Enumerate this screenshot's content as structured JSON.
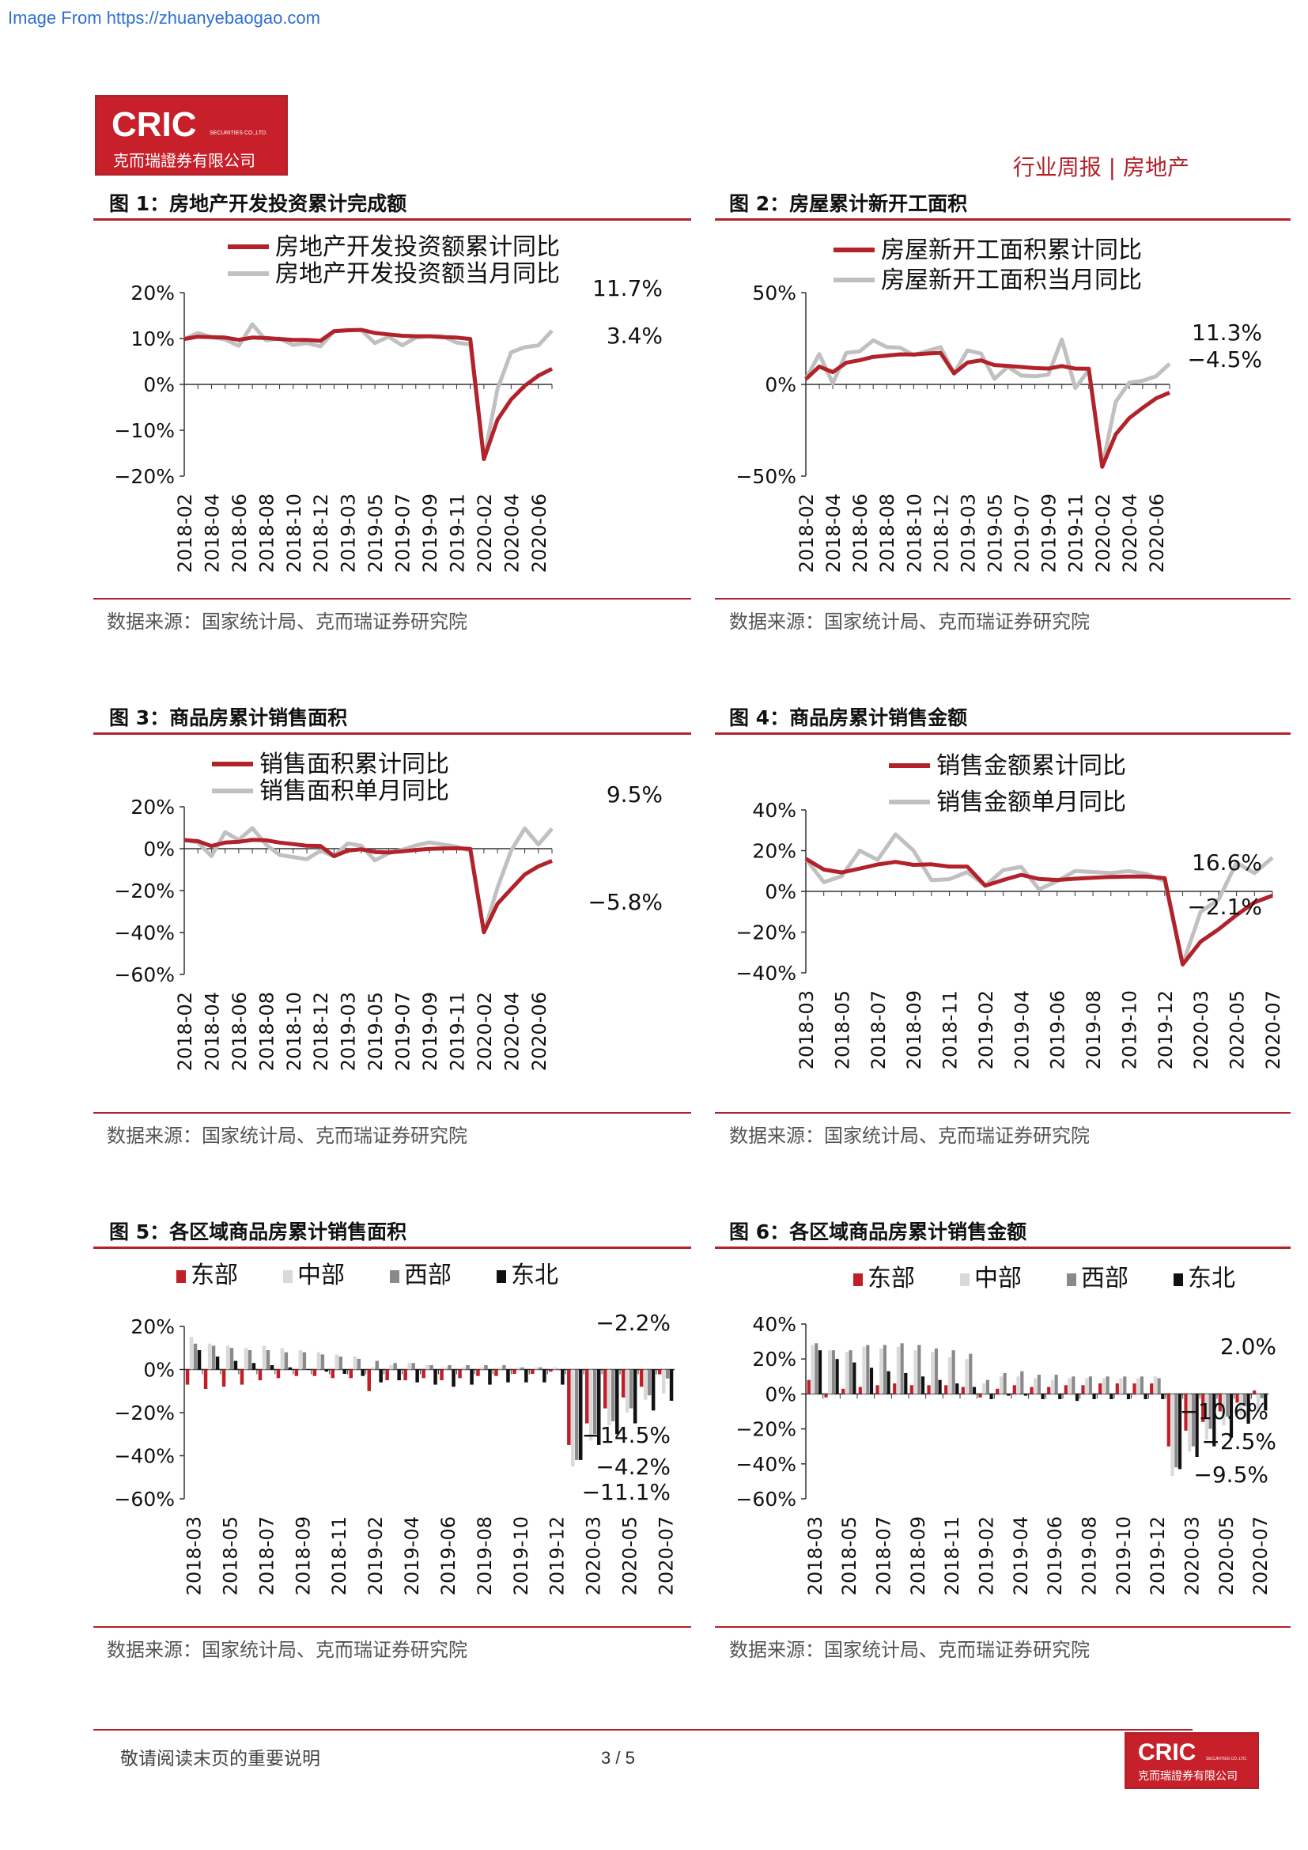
{
  "watermark": "Image From https://zhuanyebaogao.com",
  "logo": {
    "brand": "CRIC",
    "sub": "SECURITIES CO.,LTD.",
    "cn": "克而瑞證券有限公司"
  },
  "header": {
    "tag": "行业周报 | 房地产"
  },
  "colors": {
    "accent": "#b2222a",
    "series_dark": "#b2222a",
    "series_light": "#c0c0c0",
    "bar_east": "#c01f27",
    "bar_central": "#d9d9d9",
    "bar_west": "#8a8a8a",
    "bar_ne": "#111111"
  },
  "figures": [
    {
      "title": "图 1：房地产开发投资累计完成额",
      "source": "数据来源：国家统计局、克而瑞证券研究院"
    },
    {
      "title": "图 2：房屋累计新开工面积",
      "source": "数据来源：国家统计局、克而瑞证券研究院"
    },
    {
      "title": "图 3：商品房累计销售面积",
      "source": "数据来源：国家统计局、克而瑞证券研究院"
    },
    {
      "title": "图 4：商品房累计销售金额",
      "source": "数据来源：国家统计局、克而瑞证券研究院"
    },
    {
      "title": "图 5：各区域商品房累计销售面积",
      "source": "数据来源：国家统计局、克而瑞证券研究院"
    },
    {
      "title": "图 6：各区域商品房累计销售金额",
      "source": "数据来源：国家统计局、克而瑞证券研究院"
    }
  ],
  "footer": {
    "note": "敬请阅读末页的重要说明",
    "page": "3 / 5"
  },
  "chart_data": [
    {
      "type": "line",
      "x": [
        "2018-02",
        "2018-03",
        "2018-04",
        "2018-05",
        "2018-06",
        "2018-07",
        "2018-08",
        "2018-09",
        "2018-10",
        "2018-11",
        "2018-12",
        "2019-02",
        "2019-03",
        "2019-04",
        "2019-05",
        "2019-06",
        "2019-07",
        "2019-08",
        "2019-09",
        "2019-10",
        "2019-11",
        "2019-12",
        "2020-02",
        "2020-03",
        "2020-04",
        "2020-05",
        "2020-06",
        "2020-07"
      ],
      "xticks": [
        "2018-02",
        "2018-04",
        "2018-06",
        "2018-08",
        "2018-10",
        "2018-12",
        "2019-03",
        "2019-05",
        "2019-07",
        "2019-09",
        "2019-11",
        "2020-02",
        "2020-04",
        "2020-06"
      ],
      "ylim": [
        -20,
        20
      ],
      "yticks": [
        "20%",
        "10%",
        "0%",
        "−10%",
        "−20%"
      ],
      "ytick_values": [
        20,
        10,
        0,
        -10,
        -20
      ],
      "series": [
        {
          "name": "房地产开发投资额累计同比",
          "values": [
            9.9,
            10.4,
            10.3,
            10.2,
            9.7,
            10.2,
            10.1,
            9.9,
            9.7,
            9.7,
            9.5,
            11.6,
            11.8,
            11.9,
            11.2,
            10.9,
            10.6,
            10.5,
            10.5,
            10.3,
            10.2,
            9.9,
            -16.3,
            -7.7,
            -3.3,
            -0.3,
            1.9,
            3.4
          ]
        },
        {
          "name": "房地产开发投资额当月同比",
          "values": [
            9.9,
            11.2,
            10.3,
            9.8,
            8.4,
            13.1,
            9.6,
            10.0,
            8.6,
            9.0,
            8.3,
            11.6,
            11.9,
            11.8,
            9.0,
            10.4,
            8.5,
            10.2,
            10.5,
            10.5,
            9.1,
            8.7,
            -16.3,
            -1.0,
            7.0,
            8.1,
            8.5,
            11.7
          ]
        }
      ],
      "annotations": [
        "11.7%",
        "3.4%"
      ]
    },
    {
      "type": "line",
      "x": [
        "2018-02",
        "2018-03",
        "2018-04",
        "2018-05",
        "2018-06",
        "2018-07",
        "2018-08",
        "2018-09",
        "2018-10",
        "2018-11",
        "2018-12",
        "2019-02",
        "2019-03",
        "2019-04",
        "2019-05",
        "2019-06",
        "2019-07",
        "2019-08",
        "2019-09",
        "2019-10",
        "2019-11",
        "2019-12",
        "2020-02",
        "2020-03",
        "2020-04",
        "2020-05",
        "2020-06",
        "2020-07"
      ],
      "xticks": [
        "2018-02",
        "2018-04",
        "2018-06",
        "2018-08",
        "2018-10",
        "2018-12",
        "2019-03",
        "2019-05",
        "2019-07",
        "2019-09",
        "2019-11",
        "2020-02",
        "2020-04",
        "2020-06"
      ],
      "ylim": [
        -50,
        50
      ],
      "yticks": [
        "50%",
        "0%",
        "−50%"
      ],
      "ytick_values": [
        50,
        0,
        -50
      ],
      "series": [
        {
          "name": "房屋新开工面积累计同比",
          "values": [
            2.9,
            9.7,
            6.7,
            11.8,
            13.2,
            15.0,
            15.7,
            16.4,
            16.3,
            16.8,
            17.2,
            6.0,
            11.9,
            13.1,
            10.5,
            10.1,
            9.5,
            8.9,
            8.6,
            10.0,
            8.6,
            8.5,
            -44.9,
            -27.2,
            -18.4,
            -12.8,
            -7.6,
            -4.5
          ]
        },
        {
          "name": "房屋新开工面积当月同比",
          "values": [
            2.9,
            16.5,
            0.6,
            17.2,
            18.0,
            24.0,
            20.4,
            20.0,
            16.0,
            18.2,
            20.3,
            6.0,
            18.5,
            16.8,
            3.0,
            9.6,
            4.8,
            4.4,
            5.3,
            24.5,
            -2.0,
            7.8,
            -44.9,
            -9.5,
            1.0,
            2.0,
            4.5,
            11.3
          ]
        }
      ],
      "annotations": [
        "11.3%",
        "−4.5%"
      ]
    },
    {
      "type": "line",
      "x": [
        "2018-02",
        "2018-03",
        "2018-04",
        "2018-05",
        "2018-06",
        "2018-07",
        "2018-08",
        "2018-09",
        "2018-10",
        "2018-11",
        "2018-12",
        "2019-02",
        "2019-03",
        "2019-04",
        "2019-05",
        "2019-06",
        "2019-07",
        "2019-08",
        "2019-09",
        "2019-10",
        "2019-11",
        "2019-12",
        "2020-02",
        "2020-03",
        "2020-04",
        "2020-05",
        "2020-06",
        "2020-07"
      ],
      "xticks": [
        "2018-02",
        "2018-04",
        "2018-06",
        "2018-08",
        "2018-10",
        "2018-12",
        "2019-03",
        "2019-05",
        "2019-07",
        "2019-09",
        "2019-11",
        "2020-02",
        "2020-04",
        "2020-06"
      ],
      "ylim": [
        -60,
        20
      ],
      "yticks": [
        "20%",
        "0%",
        "−20%",
        "−40%",
        "−60%"
      ],
      "ytick_values": [
        20,
        0,
        -20,
        -40,
        -60
      ],
      "series": [
        {
          "name": "销售面积累计同比",
          "values": [
            4.1,
            3.6,
            1.3,
            2.9,
            3.3,
            4.2,
            4.0,
            2.9,
            2.2,
            1.4,
            1.3,
            -3.6,
            -0.9,
            -0.3,
            -1.6,
            -1.8,
            -1.3,
            -0.6,
            -0.1,
            0.1,
            0.2,
            -0.1,
            -39.9,
            -26.3,
            -19.3,
            -12.3,
            -8.4,
            -5.8
          ]
        },
        {
          "name": "销售面积单月同比",
          "values": [
            4.1,
            3.0,
            -3.5,
            7.9,
            4.2,
            9.8,
            2.0,
            -3.0,
            -4.0,
            -5.0,
            -1.0,
            -3.6,
            2.5,
            1.4,
            -5.6,
            -2.2,
            -0.5,
            1.5,
            3.0,
            2.0,
            1.0,
            -1.0,
            -39.9,
            -18.6,
            -1.0,
            9.7,
            2.0,
            9.5
          ]
        }
      ],
      "annotations": [
        "9.5%",
        "−5.8%"
      ]
    },
    {
      "type": "line",
      "x": [
        "2018-03",
        "2018-04",
        "2018-05",
        "2018-06",
        "2018-07",
        "2018-08",
        "2018-09",
        "2018-10",
        "2018-11",
        "2018-12",
        "2019-02",
        "2019-03",
        "2019-04",
        "2019-05",
        "2019-06",
        "2019-07",
        "2019-08",
        "2019-09",
        "2019-10",
        "2019-11",
        "2019-12",
        "2020-02",
        "2020-03",
        "2020-04",
        "2020-05",
        "2020-06",
        "2020-07"
      ],
      "xticks": [
        "2018-03",
        "2018-05",
        "2018-07",
        "2018-09",
        "2018-11",
        "2019-02",
        "2019-04",
        "2019-06",
        "2019-08",
        "2019-10",
        "2019-12",
        "2020-03",
        "2020-05",
        "2020-07"
      ],
      "ylim": [
        -40,
        40
      ],
      "yticks": [
        "40%",
        "20%",
        "0%",
        "−20%",
        "−40%"
      ],
      "ytick_values": [
        40,
        20,
        0,
        -20,
        -40
      ],
      "series": [
        {
          "name": "销售金额累计同比",
          "values": [
            16.0,
            10.7,
            9.3,
            11.2,
            13.2,
            14.5,
            13.0,
            13.3,
            12.2,
            12.2,
            2.8,
            5.6,
            8.1,
            6.1,
            5.6,
            6.2,
            6.7,
            7.1,
            7.3,
            7.3,
            6.5,
            -35.9,
            -24.7,
            -18.6,
            -11.6,
            -5.4,
            -2.1
          ]
        },
        {
          "name": "销售金额单月同比",
          "values": [
            16.0,
            4.5,
            7.5,
            20.0,
            15.5,
            28.0,
            20.0,
            5.5,
            6.0,
            9.5,
            2.8,
            10.5,
            12.0,
            1.0,
            5.0,
            10.0,
            9.5,
            9.0,
            10.0,
            8.5,
            5.0,
            -35.9,
            -10.0,
            -4.0,
            14.0,
            9.0,
            16.6
          ]
        }
      ],
      "annotations": [
        "16.6%",
        "−2.1%"
      ]
    },
    {
      "type": "bar",
      "x": [
        "2018-03",
        "2018-04",
        "2018-05",
        "2018-06",
        "2018-07",
        "2018-08",
        "2018-09",
        "2018-10",
        "2018-11",
        "2018-12",
        "2019-02",
        "2019-03",
        "2019-04",
        "2019-05",
        "2019-06",
        "2019-07",
        "2019-08",
        "2019-09",
        "2019-10",
        "2019-11",
        "2019-12",
        "2020-02",
        "2020-03",
        "2020-04",
        "2020-05",
        "2020-06",
        "2020-07"
      ],
      "xticks": [
        "2018-03",
        "2018-05",
        "2018-07",
        "2018-09",
        "2018-11",
        "2019-02",
        "2019-04",
        "2019-06",
        "2019-08",
        "2019-10",
        "2019-12",
        "2020-03",
        "2020-05",
        "2020-07"
      ],
      "ylim": [
        -60,
        20
      ],
      "yticks": [
        "20%",
        "0%",
        "−20%",
        "−40%",
        "−60%"
      ],
      "ytick_values": [
        20,
        0,
        -20,
        -40,
        -60
      ],
      "series": [
        {
          "name": "东部",
          "values": [
            -7,
            -9,
            -8,
            -7,
            -5,
            -4,
            -3,
            -3,
            -4,
            -4,
            -10,
            -5,
            -5,
            -4,
            -5,
            -4,
            -3,
            -3,
            -2,
            -2,
            -1,
            -35,
            -25,
            -18,
            -13,
            -8,
            -2.2
          ]
        },
        {
          "name": "中部",
          "values": [
            15,
            12,
            11,
            10,
            11,
            10,
            9,
            8,
            7,
            6,
            1,
            2,
            3,
            2,
            1,
            1,
            1,
            1,
            1,
            1,
            1,
            -45,
            -33,
            -26,
            -20,
            -14,
            -11.1
          ]
        },
        {
          "name": "西部",
          "values": [
            12,
            11,
            10,
            9,
            9,
            8,
            8,
            7,
            6,
            5,
            4,
            3,
            3,
            2,
            2,
            2,
            2,
            2,
            1,
            1,
            0,
            -42,
            -30,
            -24,
            -18,
            -12,
            -4.2
          ]
        },
        {
          "name": "东北",
          "values": [
            9,
            6,
            4,
            3,
            2,
            1,
            0,
            -1,
            -2,
            -3,
            -6,
            -5,
            -6,
            -7,
            -8,
            -7,
            -7,
            -6,
            -6,
            -6,
            -7,
            -42,
            -35,
            -30,
            -25,
            -19,
            -14.5
          ]
        }
      ],
      "legend": "top-left",
      "annotations": [
        "−2.2%",
        "−14.5%",
        "−4.2%",
        "−11.1%"
      ]
    },
    {
      "type": "bar",
      "x": [
        "2018-03",
        "2018-04",
        "2018-05",
        "2018-06",
        "2018-07",
        "2018-08",
        "2018-09",
        "2018-10",
        "2018-11",
        "2018-12",
        "2019-02",
        "2019-03",
        "2019-04",
        "2019-05",
        "2019-06",
        "2019-07",
        "2019-08",
        "2019-09",
        "2019-10",
        "2019-11",
        "2019-12",
        "2020-02",
        "2020-03",
        "2020-04",
        "2020-05",
        "2020-06",
        "2020-07"
      ],
      "xticks": [
        "2018-03",
        "2018-05",
        "2018-07",
        "2018-09",
        "2018-11",
        "2019-02",
        "2019-04",
        "2019-06",
        "2019-08",
        "2019-10",
        "2019-12",
        "2020-03",
        "2020-05",
        "2020-07"
      ],
      "ylim": [
        -60,
        40
      ],
      "yticks": [
        "40%",
        "20%",
        "0%",
        "−20%",
        "−40%",
        "−60%"
      ],
      "ytick_values": [
        40,
        20,
        0,
        -20,
        -40,
        -60
      ],
      "series": [
        {
          "name": "东部",
          "values": [
            8,
            -2,
            3,
            4,
            5,
            6,
            5,
            5,
            5,
            4,
            -2,
            3,
            5,
            4,
            4,
            5,
            5,
            6,
            6,
            6,
            6,
            -30,
            -21,
            -16,
            -10,
            -5,
            2.0
          ]
        },
        {
          "name": "中部",
          "values": [
            28,
            25,
            24,
            27,
            26,
            27,
            25,
            24,
            21,
            20,
            6,
            10,
            10,
            9,
            8,
            9,
            9,
            9,
            9,
            9,
            10,
            -47,
            -33,
            -26,
            -18,
            -12,
            -10.6
          ]
        },
        {
          "name": "西部",
          "values": [
            29,
            25,
            25,
            28,
            28,
            29,
            28,
            26,
            25,
            23,
            8,
            12,
            13,
            11,
            11,
            10,
            10,
            10,
            10,
            10,
            9,
            -42,
            -30,
            -20,
            -13,
            -7,
            -2.5
          ]
        },
        {
          "name": "东北",
          "values": [
            25,
            20,
            18,
            15,
            13,
            12,
            10,
            8,
            6,
            4,
            -3,
            -1,
            -1,
            -3,
            -3,
            -4,
            -3,
            -3,
            -3,
            -3,
            -3,
            -43,
            -36,
            -30,
            -25,
            -17,
            -9.5
          ]
        }
      ],
      "legend": "top-left",
      "annotations": [
        "2.0%",
        "−10.6%",
        "−2.5%",
        "−9.5%"
      ]
    }
  ]
}
